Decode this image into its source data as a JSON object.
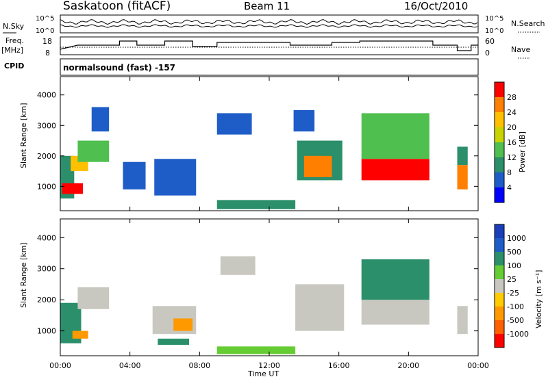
{
  "header": {
    "title": "Saskatoon (fitACF)",
    "beam": "Beam 11",
    "date": "16/Oct/2010"
  },
  "noise_panel": {
    "left_label": "N.Sky",
    "left_ticks": [
      "10^5",
      "10^0"
    ],
    "right_ticks": [
      "10^5",
      "10^0"
    ],
    "right_label": "N.Search"
  },
  "freq_panel": {
    "left_label_1": "Freq.",
    "left_label_2": "[MHz]",
    "left_ticks": [
      "18",
      "8"
    ],
    "right_ticks": [
      "60",
      "0"
    ],
    "right_label": "Nave"
  },
  "cpid": {
    "label": "CPID",
    "value": "normalsound (fast) -157"
  },
  "x_axis": {
    "label": "Time UT",
    "ticks": [
      "00:00",
      "04:00",
      "08:00",
      "12:00",
      "16:00",
      "20:00",
      "00:00"
    ]
  },
  "chart_data": [
    {
      "type": "heatmap",
      "name": "power",
      "ylabel": "Slant Range [km]",
      "yticks": [
        "4000",
        "3000",
        "2000",
        "1000"
      ],
      "colorbar_label": "Power [dB]",
      "colorbar_ticks": [
        "28",
        "24",
        "20",
        "16",
        "12",
        "8",
        "4"
      ],
      "colors": [
        "#0000ff",
        "#1e5cc8",
        "#2a8f6a",
        "#4fbf50",
        "#c8d400",
        "#ffc000",
        "#ff8000",
        "#ff0000"
      ],
      "xlim": [
        0,
        24
      ],
      "ylim": [
        200,
        4600
      ],
      "regions": [
        {
          "t0": 0.0,
          "t1": 0.8,
          "r0": 600,
          "r1": 2000,
          "c": "#2a8f6a"
        },
        {
          "t0": 0.6,
          "t1": 1.6,
          "r0": 1500,
          "r1": 2000,
          "c": "#ffc000"
        },
        {
          "t0": 1.0,
          "t1": 2.8,
          "r0": 1800,
          "r1": 2500,
          "c": "#4fbf50"
        },
        {
          "t0": 0.1,
          "t1": 1.3,
          "r0": 750,
          "r1": 1100,
          "c": "#ff0000"
        },
        {
          "t0": 1.8,
          "t1": 2.8,
          "r0": 2800,
          "r1": 3600,
          "c": "#1e5cc8"
        },
        {
          "t0": 3.6,
          "t1": 4.9,
          "r0": 900,
          "r1": 1800,
          "c": "#1e5cc8"
        },
        {
          "t0": 5.4,
          "t1": 7.8,
          "r0": 700,
          "r1": 1900,
          "c": "#1e5cc8"
        },
        {
          "t0": 9.0,
          "t1": 11.0,
          "r0": 2700,
          "r1": 3400,
          "c": "#1e5cc8"
        },
        {
          "t0": 9.0,
          "t1": 13.5,
          "r0": 250,
          "r1": 550,
          "c": "#2a8f6a"
        },
        {
          "t0": 13.6,
          "t1": 16.2,
          "r0": 1200,
          "r1": 2500,
          "c": "#2a8f6a"
        },
        {
          "t0": 14.0,
          "t1": 15.6,
          "r0": 1300,
          "r1": 2000,
          "c": "#ff8000"
        },
        {
          "t0": 13.4,
          "t1": 14.6,
          "r0": 2800,
          "r1": 3500,
          "c": "#1e5cc8"
        },
        {
          "t0": 17.3,
          "t1": 21.2,
          "r0": 1200,
          "r1": 1900,
          "c": "#ff0000"
        },
        {
          "t0": 17.3,
          "t1": 21.2,
          "r0": 1900,
          "r1": 3400,
          "c": "#4fbf50"
        },
        {
          "t0": 22.8,
          "t1": 23.4,
          "r0": 900,
          "r1": 1700,
          "c": "#ff8000"
        },
        {
          "t0": 22.8,
          "t1": 23.4,
          "r0": 1700,
          "r1": 2300,
          "c": "#2a8f6a"
        }
      ]
    },
    {
      "type": "heatmap",
      "name": "velocity",
      "ylabel": "Slant Range [km]",
      "yticks": [
        "4000",
        "3000",
        "2000",
        "1000"
      ],
      "colorbar_label": "Velocity [m s⁻¹]",
      "colorbar_ticks": [
        "1000",
        "500",
        "100",
        "25",
        "-25",
        "-100",
        "-500",
        "-1000"
      ],
      "colors": [
        "#ff0000",
        "#ff6000",
        "#ff9900",
        "#ffcc00",
        "#c8c8c0",
        "#66cc33",
        "#2a8f6a",
        "#1e5cc8",
        "#1a3fb8"
      ],
      "xlim": [
        0,
        24
      ],
      "ylim": [
        200,
        4600
      ],
      "regions": [
        {
          "t0": 0.0,
          "t1": 1.2,
          "r0": 600,
          "r1": 1900,
          "c": "#2a8f6a"
        },
        {
          "t0": 0.7,
          "t1": 1.6,
          "r0": 750,
          "r1": 1000,
          "c": "#ff9900"
        },
        {
          "t0": 1.0,
          "t1": 2.8,
          "r0": 1700,
          "r1": 2400,
          "c": "#c8c8c0"
        },
        {
          "t0": 5.3,
          "t1": 7.8,
          "r0": 900,
          "r1": 1800,
          "c": "#c8c8c0"
        },
        {
          "t0": 6.5,
          "t1": 7.6,
          "r0": 1000,
          "r1": 1400,
          "c": "#ff9900"
        },
        {
          "t0": 5.6,
          "t1": 7.4,
          "r0": 550,
          "r1": 750,
          "c": "#2a8f6a"
        },
        {
          "t0": 9.2,
          "t1": 11.2,
          "r0": 2800,
          "r1": 3400,
          "c": "#c8c8c0"
        },
        {
          "t0": 9.0,
          "t1": 13.5,
          "r0": 250,
          "r1": 500,
          "c": "#66cc33"
        },
        {
          "t0": 13.5,
          "t1": 16.3,
          "r0": 1000,
          "r1": 2500,
          "c": "#c8c8c0"
        },
        {
          "t0": 17.3,
          "t1": 21.2,
          "r0": 1200,
          "r1": 2000,
          "c": "#c8c8c0"
        },
        {
          "t0": 17.3,
          "t1": 21.2,
          "r0": 2000,
          "r1": 3300,
          "c": "#2a8f6a"
        },
        {
          "t0": 22.8,
          "t1": 23.4,
          "r0": 900,
          "r1": 1800,
          "c": "#c8c8c0"
        }
      ]
    }
  ]
}
